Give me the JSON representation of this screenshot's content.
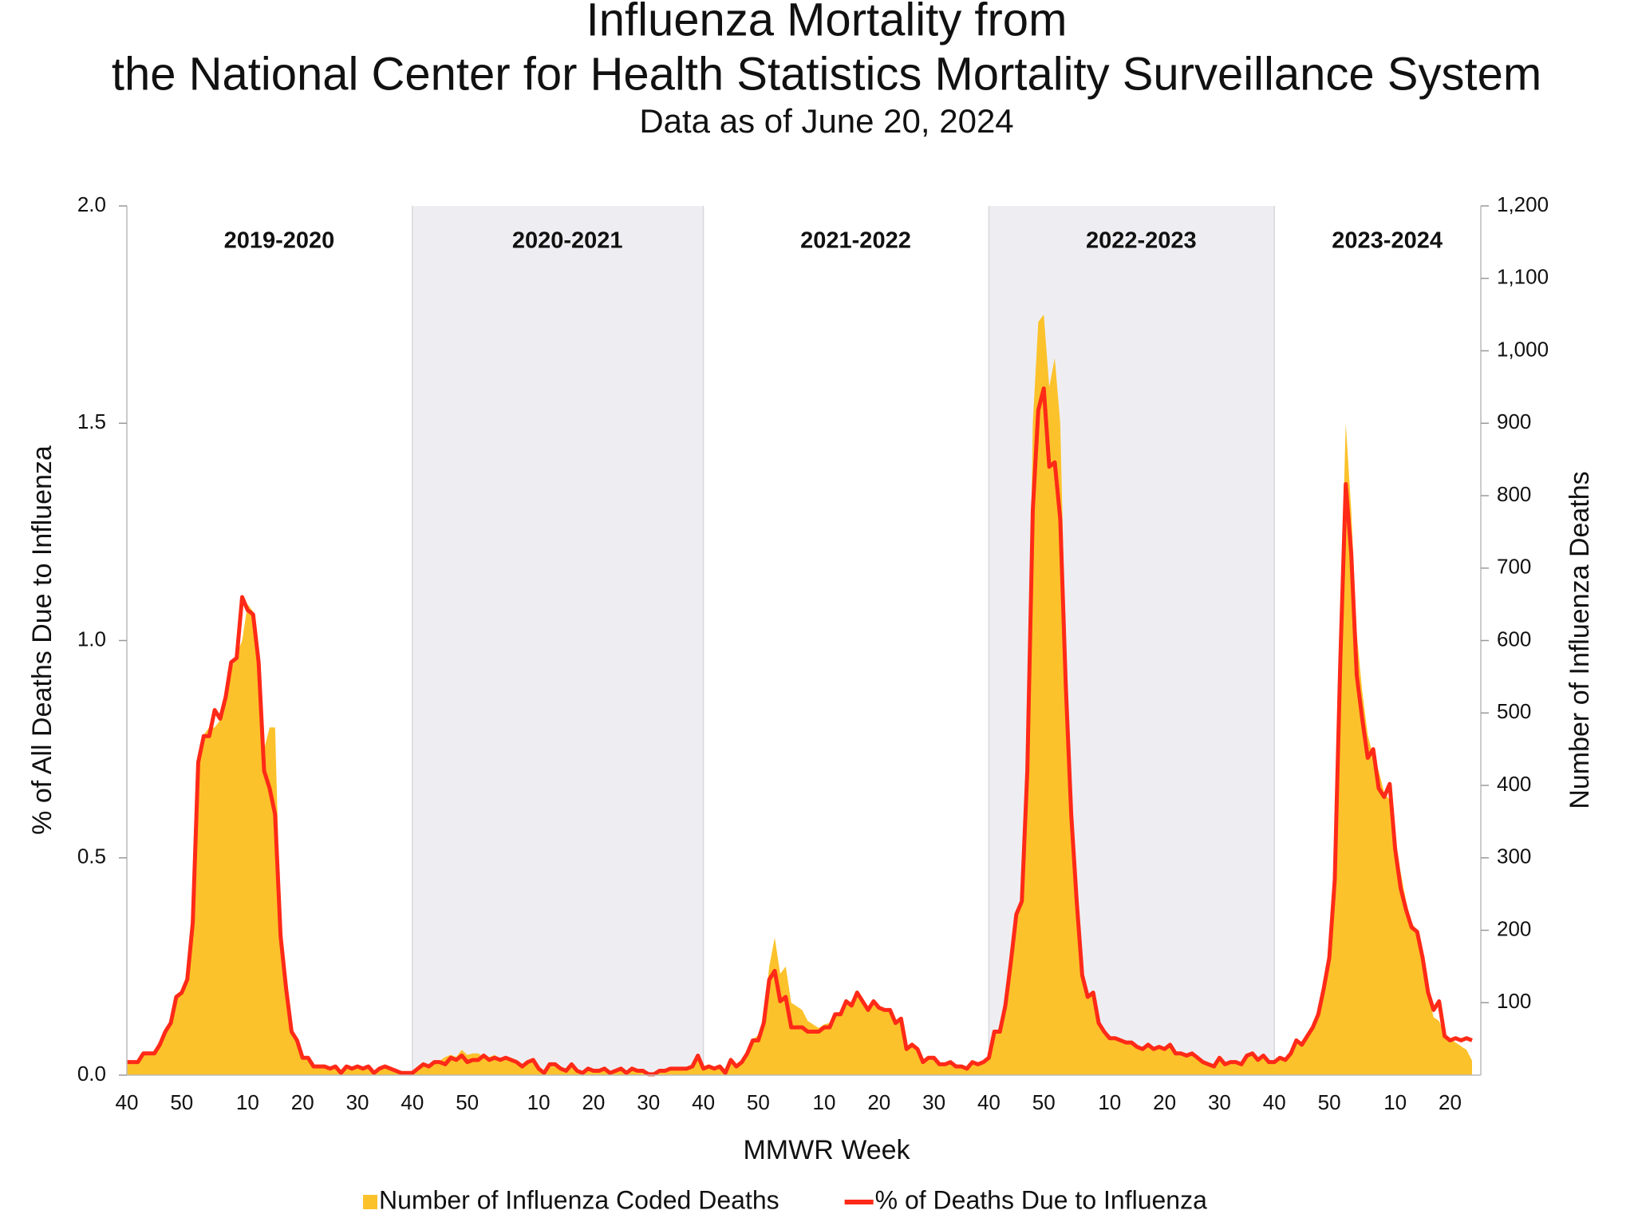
{
  "chart_data": {
    "type": "combo",
    "title": [
      "Influenza Mortality from",
      "the National Center for Health Statistics Mortality Surveillance System"
    ],
    "subtitle": "Data as of June 20, 2024",
    "x_label": "MMWR Week",
    "y_label": "% of All Deaths Due to Influenza",
    "y2_label": "Number of Influenza Deaths",
    "season_labels": [
      "2019-2020",
      "2020-2021",
      "2021-2022",
      "2022-2023",
      "2023-2024"
    ],
    "season_shaded": [
      false,
      true,
      false,
      true,
      false
    ],
    "shade_color": "#eeeef2",
    "legend": "bottom",
    "ylim": [
      0,
      2
    ],
    "yticks": [
      {
        "value": 0,
        "label": "0.0"
      },
      {
        "value": 0.5,
        "label": "0.5"
      },
      {
        "value": 1,
        "label": "1.0"
      },
      {
        "value": 1.5,
        "label": "1.5"
      },
      {
        "value": 2,
        "label": "2.0"
      }
    ],
    "y2lim": [
      0,
      1200
    ],
    "y2ticks": [
      100,
      200,
      300,
      400,
      500,
      600,
      700,
      800,
      900,
      {
        "value": 1000,
        "label": "1,000"
      },
      {
        "value": 1100,
        "label": "1,100"
      },
      {
        "value": 1200,
        "label": "1,200"
      }
    ],
    "categories": [
      "40",
      null,
      null,
      null,
      null,
      null,
      null,
      null,
      null,
      null,
      "50",
      null,
      null,
      null,
      null,
      null,
      null,
      null,
      null,
      null,
      null,
      null,
      "10",
      null,
      null,
      null,
      null,
      null,
      null,
      null,
      null,
      null,
      "20",
      null,
      null,
      null,
      null,
      null,
      null,
      null,
      null,
      null,
      "30",
      null,
      null,
      null,
      null,
      null,
      null,
      null,
      null,
      null,
      "40",
      null,
      null,
      null,
      null,
      null,
      null,
      null,
      null,
      null,
      "50",
      null,
      null,
      null,
      null,
      null,
      null,
      null,
      null,
      null,
      null,
      null,
      null,
      "10",
      null,
      null,
      null,
      null,
      null,
      null,
      null,
      null,
      null,
      "20",
      null,
      null,
      null,
      null,
      null,
      null,
      null,
      null,
      null,
      "30",
      null,
      null,
      null,
      null,
      null,
      null,
      null,
      null,
      null,
      "40",
      null,
      null,
      null,
      null,
      null,
      null,
      null,
      null,
      null,
      "50",
      null,
      null,
      null,
      null,
      null,
      null,
      null,
      null,
      null,
      null,
      null,
      "10",
      null,
      null,
      null,
      null,
      null,
      null,
      null,
      null,
      null,
      "20",
      null,
      null,
      null,
      null,
      null,
      null,
      null,
      null,
      null,
      "30",
      null,
      null,
      null,
      null,
      null,
      null,
      null,
      null,
      null,
      "40",
      null,
      null,
      null,
      null,
      null,
      null,
      null,
      null,
      null,
      "50",
      null,
      null,
      null,
      null,
      null,
      null,
      null,
      null,
      null,
      null,
      null,
      "10",
      null,
      null,
      null,
      null,
      null,
      null,
      null,
      null,
      null,
      "20",
      null,
      null,
      null,
      null,
      null,
      null,
      null,
      null,
      null,
      "30",
      null,
      null,
      null,
      null,
      null,
      null,
      null,
      null,
      null,
      "40",
      null,
      null,
      null,
      null,
      null,
      null,
      null,
      null,
      null,
      "50",
      null,
      null,
      null,
      null,
      null,
      null,
      null,
      null,
      null,
      null,
      null,
      "10",
      null,
      null,
      null,
      null,
      null,
      null,
      null,
      null,
      null,
      "20",
      null,
      null,
      null,
      null
    ],
    "series": [
      {
        "name": "Number of Influenza Coded Deaths",
        "type": "area",
        "axis": "y2",
        "color": "#fcc22b",
        "values": [
          20,
          20,
          20,
          30,
          30,
          30,
          45,
          60,
          75,
          110,
          115,
          135,
          210,
          440,
          470,
          480,
          480,
          490,
          520,
          560,
          580,
          600,
          650,
          640,
          560,
          450,
          480,
          480,
          200,
          110,
          60,
          45,
          25,
          20,
          12,
          12,
          10,
          8,
          10,
          5,
          10,
          8,
          10,
          8,
          10,
          5,
          8,
          10,
          8,
          6,
          3,
          3,
          3,
          8,
          12,
          12,
          18,
          20,
          25,
          28,
          25,
          35,
          28,
          30,
          30,
          25,
          25,
          28,
          22,
          25,
          20,
          15,
          10,
          15,
          18,
          8,
          3,
          12,
          12,
          8,
          5,
          12,
          5,
          3,
          8,
          5,
          5,
          8,
          3,
          5,
          8,
          3,
          8,
          5,
          5,
          1,
          1,
          5,
          5,
          8,
          8,
          8,
          8,
          10,
          25,
          10,
          12,
          10,
          12,
          5,
          20,
          12,
          18,
          30,
          50,
          55,
          80,
          150,
          190,
          140,
          150,
          100,
          95,
          90,
          75,
          70,
          65,
          70,
          72,
          85,
          88,
          105,
          100,
          115,
          105,
          95,
          105,
          95,
          90,
          92,
          75,
          80,
          40,
          45,
          38,
          20,
          25,
          25,
          15,
          15,
          18,
          12,
          12,
          10,
          18,
          15,
          18,
          25,
          60,
          60,
          100,
          160,
          220,
          250,
          420,
          900,
          1040,
          1050,
          950,
          990,
          900,
          580,
          380,
          250,
          140,
          110,
          115,
          75,
          60,
          52,
          50,
          48,
          45,
          45,
          40,
          38,
          42,
          38,
          40,
          38,
          42,
          30,
          30,
          28,
          30,
          25,
          18,
          15,
          12,
          25,
          15,
          18,
          18,
          15,
          28,
          30,
          22,
          28,
          18,
          20,
          25,
          22,
          30,
          50,
          45,
          58,
          70,
          90,
          125,
          165,
          270,
          620,
          900,
          780,
          610,
          530,
          470,
          440,
          420,
          390,
          380,
          330,
          280,
          240,
          210,
          200,
          160,
          110,
          80,
          75,
          55,
          50,
          45,
          40,
          35,
          20
        ]
      },
      {
        "name": "% of Deaths Due to Influenza",
        "type": "line",
        "axis": "y",
        "color": "#ff2a17",
        "values": [
          0.03,
          0.03,
          0.03,
          0.05,
          0.05,
          0.05,
          0.07,
          0.1,
          0.12,
          0.18,
          0.19,
          0.22,
          0.35,
          0.72,
          0.78,
          0.78,
          0.84,
          0.82,
          0.87,
          0.95,
          0.96,
          1.1,
          1.07,
          1.06,
          0.95,
          0.7,
          0.66,
          0.6,
          0.32,
          0.2,
          0.1,
          0.08,
          0.04,
          0.04,
          0.02,
          0.02,
          0.02,
          0.015,
          0.02,
          0.005,
          0.02,
          0.015,
          0.02,
          0.015,
          0.02,
          0.005,
          0.015,
          0.02,
          0.015,
          0.01,
          0.005,
          0.005,
          0.005,
          0.015,
          0.025,
          0.02,
          0.03,
          0.03,
          0.025,
          0.04,
          0.035,
          0.045,
          0.03,
          0.035,
          0.035,
          0.045,
          0.035,
          0.04,
          0.035,
          0.04,
          0.035,
          0.03,
          0.02,
          0.03,
          0.035,
          0.015,
          0.005,
          0.025,
          0.025,
          0.015,
          0.01,
          0.025,
          0.01,
          0.005,
          0.015,
          0.01,
          0.01,
          0.015,
          0.005,
          0.01,
          0.015,
          0.005,
          0.015,
          0.01,
          0.01,
          0.002,
          0.002,
          0.01,
          0.01,
          0.015,
          0.015,
          0.015,
          0.015,
          0.02,
          0.045,
          0.015,
          0.02,
          0.015,
          0.02,
          0.005,
          0.035,
          0.02,
          0.03,
          0.05,
          0.08,
          0.08,
          0.12,
          0.22,
          0.24,
          0.17,
          0.18,
          0.11,
          0.11,
          0.11,
          0.1,
          0.1,
          0.1,
          0.11,
          0.11,
          0.14,
          0.14,
          0.17,
          0.16,
          0.19,
          0.17,
          0.15,
          0.17,
          0.155,
          0.15,
          0.15,
          0.12,
          0.13,
          0.06,
          0.07,
          0.06,
          0.03,
          0.04,
          0.04,
          0.025,
          0.025,
          0.03,
          0.02,
          0.02,
          0.015,
          0.03,
          0.025,
          0.03,
          0.04,
          0.1,
          0.1,
          0.16,
          0.26,
          0.37,
          0.4,
          0.7,
          1.3,
          1.53,
          1.58,
          1.4,
          1.41,
          1.28,
          0.9,
          0.6,
          0.4,
          0.23,
          0.18,
          0.19,
          0.12,
          0.1,
          0.085,
          0.085,
          0.08,
          0.075,
          0.075,
          0.065,
          0.06,
          0.07,
          0.06,
          0.065,
          0.06,
          0.07,
          0.05,
          0.05,
          0.045,
          0.05,
          0.04,
          0.03,
          0.025,
          0.02,
          0.04,
          0.025,
          0.03,
          0.03,
          0.025,
          0.045,
          0.05,
          0.035,
          0.045,
          0.03,
          0.03,
          0.04,
          0.035,
          0.05,
          0.08,
          0.07,
          0.09,
          0.11,
          0.14,
          0.2,
          0.27,
          0.45,
          0.95,
          1.36,
          1.2,
          0.92,
          0.82,
          0.73,
          0.75,
          0.66,
          0.64,
          0.67,
          0.52,
          0.43,
          0.38,
          0.34,
          0.33,
          0.27,
          0.19,
          0.15,
          0.17,
          0.09,
          0.08,
          0.085,
          0.08,
          0.085,
          0.08
        ]
      }
    ]
  }
}
